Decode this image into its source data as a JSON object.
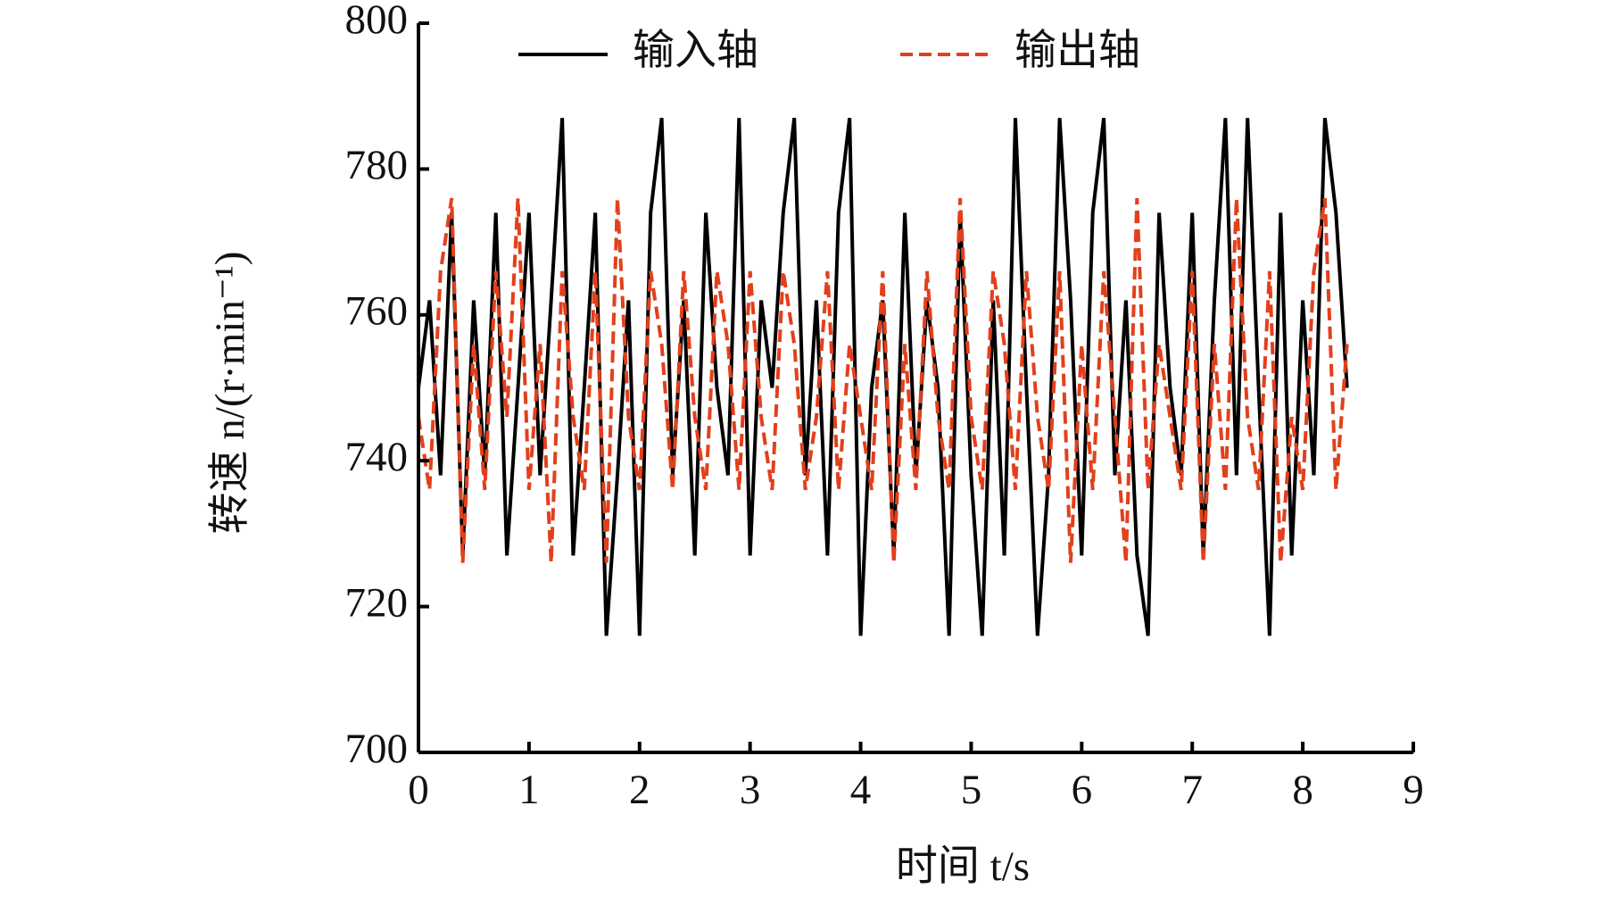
{
  "chart_data": {
    "type": "line",
    "xlabel": "时间 t/s",
    "ylabel": "转速 n/(r·min⁻¹)",
    "legend": "top",
    "xlim": [
      0,
      9
    ],
    "xticks": [
      0,
      1,
      2,
      3,
      4,
      5,
      6,
      7,
      8,
      9
    ],
    "ylim": [
      700,
      800
    ],
    "yticks": [
      700,
      720,
      740,
      760,
      780,
      800
    ],
    "x": [
      0,
      0.1,
      0.2,
      0.3,
      0.4,
      0.5,
      0.6,
      0.7,
      0.8,
      0.9,
      1,
      1.1,
      1.2,
      1.3,
      1.4,
      1.5,
      1.6,
      1.7,
      1.8,
      1.9,
      2,
      2.1,
      2.2,
      2.3,
      2.4,
      2.5,
      2.6,
      2.7,
      2.8,
      2.9,
      3,
      3.1,
      3.2,
      3.3,
      3.4,
      3.5,
      3.6,
      3.7,
      3.8,
      3.9,
      4,
      4.1,
      4.2,
      4.3,
      4.4,
      4.5,
      4.6,
      4.7,
      4.8,
      4.9,
      5,
      5.1,
      5.2,
      5.3,
      5.4,
      5.5,
      5.6,
      5.7,
      5.8,
      5.9,
      6,
      6.1,
      6.2,
      6.3,
      6.4,
      6.5,
      6.6,
      6.7,
      6.8,
      6.9,
      7,
      7.1,
      7.2,
      7.3,
      7.4,
      7.5,
      7.6,
      7.7,
      7.8,
      7.9,
      8,
      8.1,
      8.2,
      8.3,
      8.4
    ],
    "series": [
      {
        "name": "输入轴",
        "color": "#000000",
        "dash": false,
        "values": [
          750,
          762,
          738,
          774,
          727,
          762,
          738,
          774,
          727,
          750,
          774,
          738,
          762,
          787,
          727,
          750,
          774,
          716,
          738,
          762,
          716,
          774,
          787,
          738,
          762,
          727,
          774,
          750,
          738,
          787,
          727,
          762,
          750,
          774,
          787,
          738,
          762,
          727,
          774,
          787,
          716,
          750,
          762,
          727,
          774,
          738,
          762,
          750,
          716,
          774,
          738,
          716,
          762,
          727,
          787,
          750,
          716,
          738,
          787,
          762,
          727,
          774,
          787,
          738,
          762,
          727,
          716,
          774,
          750,
          738,
          774,
          727,
          762,
          787,
          738,
          787,
          750,
          716,
          774,
          727,
          762,
          738,
          787,
          774,
          750
        ]
      },
      {
        "name": "输出轴",
        "color": "#e2401c",
        "dash": true,
        "values": [
          746,
          736,
          766,
          776,
          726,
          756,
          736,
          766,
          746,
          776,
          736,
          756,
          726,
          766,
          746,
          736,
          766,
          726,
          776,
          746,
          736,
          766,
          756,
          736,
          766,
          746,
          736,
          766,
          756,
          736,
          766,
          746,
          736,
          766,
          756,
          736,
          746,
          766,
          736,
          756,
          746,
          736,
          766,
          726,
          756,
          736,
          766,
          746,
          736,
          776,
          746,
          736,
          766,
          756,
          736,
          766,
          746,
          736,
          766,
          726,
          756,
          736,
          766,
          746,
          726,
          776,
          736,
          756,
          746,
          736,
          766,
          726,
          756,
          736,
          776,
          746,
          736,
          766,
          726,
          746,
          736,
          766,
          776,
          736,
          756
        ]
      }
    ]
  }
}
